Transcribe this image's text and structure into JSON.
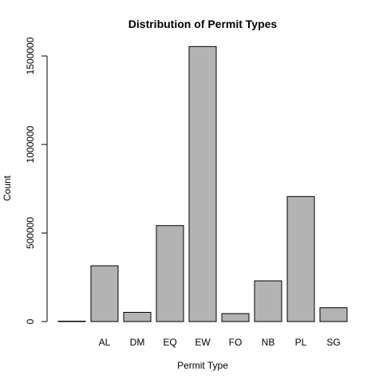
{
  "chart_data": {
    "type": "bar",
    "title": "Distribution of Permit Types",
    "xlabel": "Permit Type",
    "ylabel": "Count",
    "categories": [
      "",
      "AL",
      "DM",
      "EQ",
      "EW",
      "FO",
      "NB",
      "PL",
      "SG"
    ],
    "values": [
      2000,
      315000,
      52000,
      542000,
      1553000,
      45000,
      230000,
      706000,
      78000
    ],
    "ylim": [
      0,
      1600000
    ],
    "yticks": [
      0,
      500000,
      1000000,
      1500000
    ],
    "ytick_labels": [
      "0",
      "500000",
      "1000000",
      "1500000"
    ],
    "grid": false,
    "colors": {
      "bar_fill": "#b3b3b3",
      "bar_stroke": "#000000"
    }
  }
}
